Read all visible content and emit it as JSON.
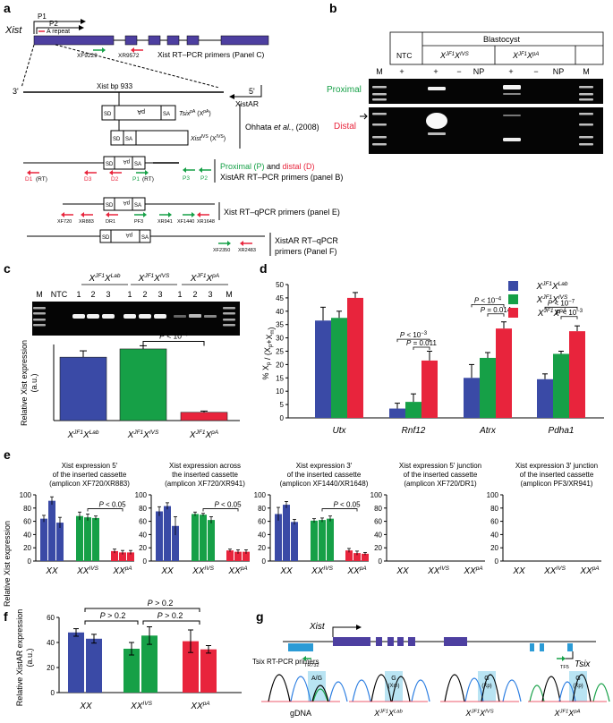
{
  "panels": {
    "a": {
      "letter": "a",
      "gene": "Xist",
      "promoter1": "P1",
      "promoter2": "P2",
      "a_repeat": "A repeat",
      "primer_left": "XF9229",
      "primer_right": "XR9572",
      "primers_panel_c": "Xist RT–PCR primers (Panel C)",
      "strand_3": "3'",
      "strand_5": "5'",
      "bp_label": "Xist bp 933",
      "xistar": "XistAR",
      "cassette_sd": "SD",
      "cassette_sa": "SA",
      "cassette_pa": "pA",
      "tsix_pa": "Tsix",
      "tsix_pa_sup": "pA",
      "tsix_pa_allele": "(X",
      "tsix_pa_allele_sup": "pA",
      "xist_ivs": "Xist",
      "xist_ivs_sup": "IVS",
      "xist_ivs_allele": "(X",
      "xist_ivs_allele_sup": "IVS",
      "ohhata": "Ohhata",
      "ohhata_etal": "et al.",
      "ohhata_year": ", (2008)",
      "proximal_label": "Proximal (P)",
      "and_label": " and ",
      "distal_label": "distal (D)",
      "xistar_rtpcr": "XistAR RT–PCR primers (panel B)",
      "d1": "D1",
      "rt": "(RT)",
      "d3": "D3",
      "d2": "D2",
      "p1": "P1",
      "rt2": "(RT)",
      "p3": "P3",
      "p2": "P2",
      "xf720": "XF720",
      "xr883": "XR883",
      "dr1": "DR1",
      "pf3": "PF3",
      "xr941": "XR941",
      "xf1440": "XF1440",
      "xr1648": "XR1648",
      "xist_qpcr": "Xist RT–qPCR primers (panel E)",
      "xf2350": "XF2350",
      "xr2483": "XR2483",
      "xistar_qpcr_1": "XistAR RT–qPCR",
      "xistar_qpcr_2": "primers (Panel F)"
    },
    "b": {
      "letter": "b",
      "blastocyst": "Blastocyst",
      "ntc": "NTC",
      "geno1": "X",
      "geno1_sup1": "JF1",
      "geno1_mid": "X",
      "geno1_sup2": "IVS",
      "geno2": "X",
      "geno2_sup1": "JF1",
      "geno2_mid": "X",
      "geno2_sup2": "pA",
      "lanes": [
        "M",
        "+",
        "+",
        "−",
        "NP",
        "+",
        "−",
        "NP",
        "M"
      ],
      "proximal": "Proximal",
      "distal": "Distal"
    },
    "c": {
      "letter": "c",
      "lanes": [
        "M",
        "NTC",
        "1",
        "2",
        "3",
        "1",
        "2",
        "3",
        "1",
        "2",
        "3",
        "M"
      ],
      "pvalue": "P < 10",
      "pvalue_exp": "−4"
    },
    "d": {
      "letter": "d"
    },
    "e": {
      "letter": "e",
      "ylabel": "Relative Xist expression",
      "subtitles": [
        [
          "Xist expression 5′",
          "of the inserted cassette",
          "(amplicon XF720/XR883)"
        ],
        [
          "Xist expression across",
          "the inserted cassette",
          "(amplicon XF720/XR941)"
        ],
        [
          "Xist expression 3′",
          "of the inserted cassette",
          "(amplicon XF1440/XR1648)"
        ],
        [
          "Xist expression 5′ junction",
          "of the inserted cassette",
          "(amplicon XF720/DR1)"
        ],
        [
          "Xist expression 3′ junction",
          "of the inserted cassette",
          "(amplicon PF3/XR941)"
        ]
      ],
      "pvalue": "P < 0.05"
    },
    "f": {
      "letter": "f",
      "p_top": "P > 0.2",
      "p_left": "P > 0.2",
      "p_right": "P > 0.2"
    },
    "g": {
      "letter": "g",
      "xist": "Xist",
      "tsix": "Tsix",
      "primers": "Tsix RT-PCR primers",
      "tr732": "TR732",
      "tf5": "TF5",
      "peak_labels": [
        "A/G",
        "G",
        "G",
        "G"
      ],
      "peak_sub": [
        "",
        "(Xm)",
        "(Xp)",
        "(Xp)"
      ],
      "samples": [
        "gDNA",
        "X",
        "X",
        "X"
      ],
      "sample_sup1": [
        "",
        "JF1",
        "JF1",
        "JF1"
      ],
      "sample_mid": [
        "",
        "X",
        "X",
        "X"
      ],
      "sample_sup2": [
        "",
        "Lab",
        "IVS",
        "pA"
      ]
    }
  },
  "colors": {
    "blue": "#3a4aa6",
    "green": "#16a047",
    "red": "#e8243c",
    "exon": "#4d3fa0",
    "teal": "#2b9bd6"
  },
  "chart_data": [
    {
      "type": "bar",
      "panel": "c",
      "categories_base": [
        "X",
        "X",
        "X"
      ],
      "categories_sup1": [
        "JF1",
        "JF1",
        "JF1"
      ],
      "categories_mid": [
        "X",
        "X",
        "X"
      ],
      "categories_sup2": [
        "Lab",
        "IVS",
        "pA"
      ],
      "values": [
        100,
        113,
        13
      ],
      "errors": [
        10,
        5,
        2
      ],
      "colors": [
        "#3a4aa6",
        "#16a047",
        "#e8243c"
      ],
      "ylabel": "Relative Xist expression",
      "ylabel2": "(a.u.)",
      "ylim": [
        0,
        120
      ]
    },
    {
      "type": "bar",
      "panel": "d",
      "categories": [
        "Utx",
        "Rnf12",
        "Atrx",
        "Pdha1"
      ],
      "series": [
        {
          "name_base": "X",
          "name_sup1": "JF1",
          "name_mid": "X",
          "name_sup2": "Lab",
          "color": "#3a4aa6",
          "values": [
            36.5,
            3.5,
            15,
            14.5
          ],
          "errors": [
            5,
            2,
            5,
            2
          ]
        },
        {
          "name_base": "X",
          "name_sup1": "JF1",
          "name_mid": "X",
          "name_sup2": "IVS",
          "color": "#16a047",
          "values": [
            37.5,
            6,
            22.5,
            24
          ],
          "errors": [
            2.5,
            3,
            2,
            1
          ]
        },
        {
          "name_base": "X",
          "name_sup1": "JF1",
          "name_mid": "X",
          "name_sup2": "pA",
          "color": "#e8243c",
          "values": [
            45,
            21.5,
            33.5,
            32.5
          ],
          "errors": [
            2,
            3.5,
            2.5,
            2
          ]
        }
      ],
      "ylabel_pct": "% X",
      "ylabel_sub": "p",
      "ylabel_rest": " / (X",
      "ylabel_sub2": "p",
      "ylabel_plus": "+X",
      "ylabel_sub3": "m",
      "ylabel_close": ")",
      "yticks": [
        0,
        5,
        10,
        15,
        20,
        25,
        30,
        35,
        40,
        45,
        50
      ],
      "ylim": [
        0,
        50
      ],
      "pvalues": [
        {
          "text": "P < 10",
          "exp": "−3",
          "gene": 1,
          "y": 29.5,
          "from": 0,
          "to": 2
        },
        {
          "text": "P = 0.011",
          "exp": "",
          "gene": 1,
          "y": 26.5,
          "from": 1,
          "to": 2
        },
        {
          "text": "P < 10",
          "exp": "−4",
          "gene": 2,
          "y": 42.5,
          "from": 0,
          "to": 2
        },
        {
          "text": "P = 0.014",
          "exp": "",
          "gene": 2,
          "y": 39,
          "from": 1,
          "to": 2
        },
        {
          "text": "P < 10",
          "exp": "−7",
          "gene": 3,
          "y": 41.5,
          "from": 0,
          "to": 2
        },
        {
          "text": "P < 10",
          "exp": "−3",
          "gene": 3,
          "y": 38,
          "from": 1,
          "to": 2
        }
      ]
    },
    {
      "type": "bar",
      "panel": "e",
      "yticks": [
        0,
        20,
        40,
        60,
        80,
        100
      ],
      "ylim": [
        0,
        100
      ],
      "groups": [
        "XX",
        "XX",
        "XX"
      ],
      "group_sup": [
        "",
        "IVS",
        "pA"
      ],
      "colors": [
        "#3a4aa6",
        "#16a047",
        "#e8243c"
      ],
      "subcharts": [
        {
          "values": [
            [
              64,
              91,
              58
            ],
            [
              68,
              66,
              65
            ],
            [
              15,
              13,
              13
            ]
          ],
          "errors": [
            [
              5,
              6,
              8
            ],
            [
              6,
              5,
              3
            ],
            [
              3,
              3,
              3
            ]
          ],
          "pvalue": true
        },
        {
          "values": [
            [
              75,
              83,
              53
            ],
            [
              71,
              70,
              62
            ],
            [
              16,
              14,
              14
            ]
          ],
          "errors": [
            [
              7,
              5,
              14
            ],
            [
              3,
              2,
              5
            ],
            [
              2,
              3,
              3
            ]
          ],
          "pvalue": true
        },
        {
          "values": [
            [
              71,
              85,
              59
            ],
            [
              61,
              62,
              64
            ],
            [
              16,
              12,
              11
            ]
          ],
          "errors": [
            [
              10,
              5,
              4
            ],
            [
              3,
              3,
              4
            ],
            [
              3,
              3,
              2
            ]
          ],
          "pvalue": true
        },
        {
          "values": [
            [
              0,
              0,
              0
            ],
            [
              0,
              0,
              0
            ],
            [
              0,
              0,
              0
            ]
          ],
          "errors": [
            [
              0,
              0,
              0
            ],
            [
              0,
              0,
              0
            ],
            [
              0,
              0,
              0
            ]
          ],
          "pvalue": false
        },
        {
          "values": [
            [
              0,
              0,
              0
            ],
            [
              0,
              0,
              0
            ],
            [
              0,
              0,
              0
            ]
          ],
          "errors": [
            [
              0,
              0,
              0
            ],
            [
              0,
              0,
              0
            ],
            [
              0,
              0,
              0
            ]
          ],
          "pvalue": false
        }
      ]
    },
    {
      "type": "bar",
      "panel": "f",
      "ylabel": "Relative XistAR expression",
      "ylabel2": "(a.u.)",
      "yticks": [
        0,
        20,
        40,
        60
      ],
      "ylim": [
        0,
        60
      ],
      "groups": [
        "XX",
        "XX",
        "XX"
      ],
      "group_sup": [
        "",
        "IVS",
        "pA"
      ],
      "colors": [
        "#3a4aa6",
        "#16a047",
        "#e8243c"
      ],
      "values": [
        [
          48,
          43
        ],
        [
          35,
          45.5
        ],
        [
          41,
          34.5
        ]
      ],
      "errors": [
        [
          3,
          3.5
        ],
        [
          5,
          7
        ],
        [
          9,
          3
        ]
      ]
    }
  ]
}
